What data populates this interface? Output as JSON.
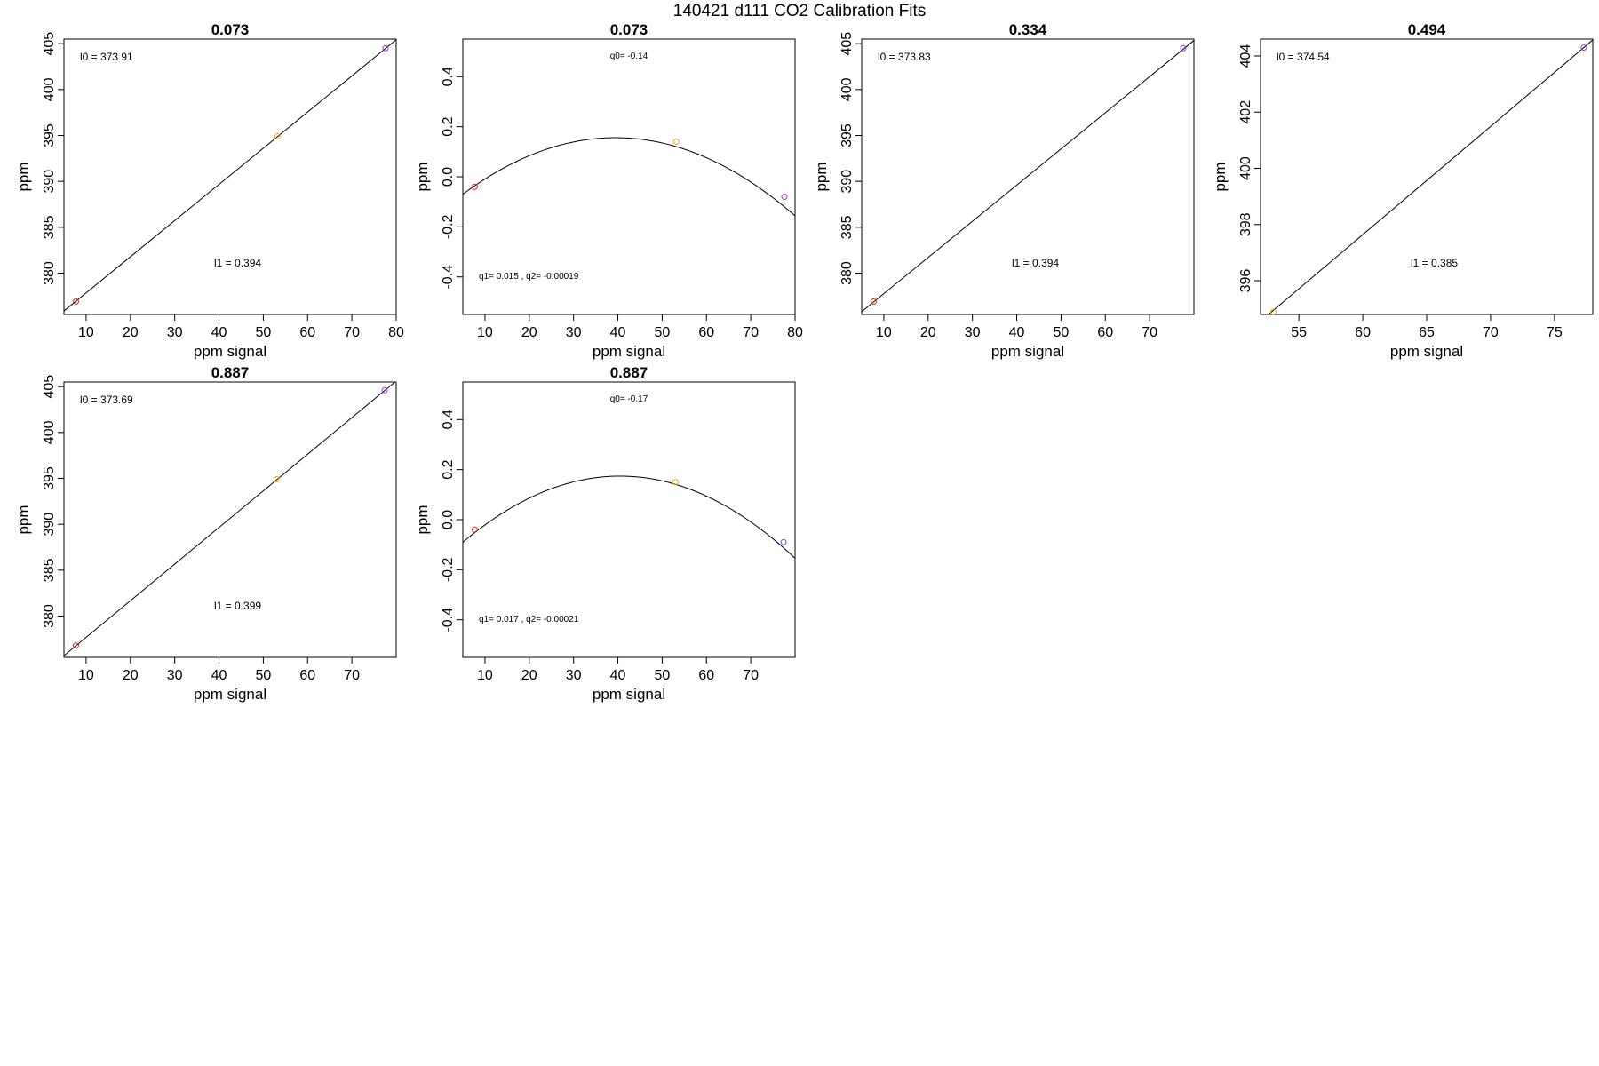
{
  "figure": {
    "title": "140421   d111   CO2 Calibration Fits"
  },
  "colors": {
    "low": "#e8241c",
    "mid": "#f5a020",
    "high": "#9a32e0",
    "line": "#000000"
  },
  "chart_data": [
    {
      "type": "scatter",
      "fit": "linear",
      "title": "0.073",
      "xlabel": "ppm signal",
      "ylabel": "ppm",
      "xlim": [
        5,
        80
      ],
      "ylim": [
        375.5,
        405.5
      ],
      "xticks": [
        10,
        20,
        30,
        40,
        50,
        60,
        70,
        80
      ],
      "yticks": [
        380,
        385,
        390,
        395,
        400,
        405
      ],
      "points": [
        {
          "x": 7.7,
          "y": 376.9,
          "color": "low"
        },
        {
          "x": 53.2,
          "y": 394.9,
          "color": "mid"
        },
        {
          "x": 77.6,
          "y": 404.5,
          "color": "high"
        }
      ],
      "intercept": 373.91,
      "slope": 0.394,
      "annotations": [
        {
          "text": "l0 =  373.91",
          "pos": "top-left"
        },
        {
          "text": "l1 =  0.394",
          "pos": "lower-middle"
        }
      ]
    },
    {
      "type": "scatter",
      "fit": "quadratic",
      "title": "0.073",
      "xlabel": "ppm signal",
      "ylabel": "ppm",
      "xlim": [
        5,
        80
      ],
      "ylim": [
        -0.55,
        0.55
      ],
      "xticks": [
        10,
        20,
        30,
        40,
        50,
        60,
        70,
        80
      ],
      "yticks": [
        -0.4,
        -0.2,
        0.0,
        0.2,
        0.4
      ],
      "points": [
        {
          "x": 7.7,
          "y": -0.04,
          "color": "low"
        },
        {
          "x": 53.2,
          "y": 0.14,
          "color": "mid"
        },
        {
          "x": 77.6,
          "y": -0.08,
          "color": "high"
        }
      ],
      "q0": -0.14,
      "q1": 0.015,
      "q2": -0.00019,
      "annotations": [
        {
          "text": "q0= -0.14",
          "pos": "top-middle"
        },
        {
          "text": "q1= 0.015 , q2= -0.00019",
          "pos": "bottom-left"
        }
      ]
    },
    {
      "type": "scatter",
      "fit": "linear",
      "title": "0.334",
      "xlabel": "ppm signal",
      "ylabel": "ppm",
      "xlim": [
        5,
        80
      ],
      "ylim": [
        375.5,
        405.5
      ],
      "xticks": [
        10,
        20,
        30,
        40,
        50,
        60,
        70
      ],
      "yticks": [
        380,
        385,
        390,
        395,
        400,
        405
      ],
      "points": [
        {
          "x": 7.7,
          "y": 376.9,
          "color": "low"
        },
        {
          "x": 77.6,
          "y": 404.5,
          "color": "high"
        }
      ],
      "intercept": 373.83,
      "slope": 0.394,
      "annotations": [
        {
          "text": "l0 =  373.83",
          "pos": "top-left"
        },
        {
          "text": "l1 =  0.394",
          "pos": "lower-middle"
        }
      ]
    },
    {
      "type": "scatter",
      "fit": "linear",
      "title": "0.494",
      "xlabel": "ppm signal",
      "ylabel": "ppm",
      "xlim": [
        52,
        78
      ],
      "ylim": [
        394.8,
        404.6
      ],
      "xticks": [
        55,
        60,
        65,
        70,
        75
      ],
      "yticks": [
        396,
        398,
        400,
        402,
        404
      ],
      "points": [
        {
          "x": 53.0,
          "y": 394.9,
          "color": "mid"
        },
        {
          "x": 77.3,
          "y": 404.3,
          "color": "high"
        }
      ],
      "intercept": 374.54,
      "slope": 0.385,
      "annotations": [
        {
          "text": "l0 =  374.54",
          "pos": "top-left"
        },
        {
          "text": "l1 =  0.385",
          "pos": "lower-middle"
        }
      ]
    },
    {
      "type": "scatter",
      "fit": "linear",
      "title": "0.887",
      "xlabel": "ppm signal",
      "ylabel": "ppm",
      "xlim": [
        5,
        80
      ],
      "ylim": [
        375.5,
        405.5
      ],
      "xticks": [
        10,
        20,
        30,
        40,
        50,
        60,
        70
      ],
      "yticks": [
        380,
        385,
        390,
        395,
        400,
        405
      ],
      "points": [
        {
          "x": 7.7,
          "y": 376.8,
          "color": "low"
        },
        {
          "x": 53.0,
          "y": 394.9,
          "color": "mid"
        },
        {
          "x": 77.4,
          "y": 404.6,
          "color": "high"
        }
      ],
      "intercept": 373.69,
      "slope": 0.399,
      "annotations": [
        {
          "text": "l0 =  373.69",
          "pos": "top-left"
        },
        {
          "text": "l1 =  0.399",
          "pos": "lower-middle"
        }
      ]
    },
    {
      "type": "scatter",
      "fit": "quadratic",
      "title": "0.887",
      "xlabel": "ppm signal",
      "ylabel": "ppm",
      "xlim": [
        5,
        80
      ],
      "ylim": [
        -0.55,
        0.55
      ],
      "xticks": [
        10,
        20,
        30,
        40,
        50,
        60,
        70
      ],
      "yticks": [
        -0.4,
        -0.2,
        0.0,
        0.2,
        0.4
      ],
      "points": [
        {
          "x": 7.7,
          "y": -0.04,
          "color": "low"
        },
        {
          "x": 53.0,
          "y": 0.15,
          "color": "mid"
        },
        {
          "x": 77.4,
          "y": -0.09,
          "color": "high"
        }
      ],
      "q0": -0.17,
      "q1": 0.017,
      "q2": -0.00021,
      "annotations": [
        {
          "text": "q0= -0.17",
          "pos": "top-middle"
        },
        {
          "text": "q1= 0.017 , q2= -0.00021",
          "pos": "bottom-left"
        }
      ]
    }
  ]
}
